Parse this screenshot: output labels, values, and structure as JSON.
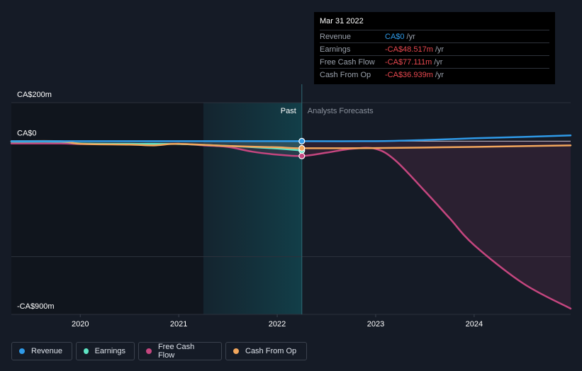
{
  "colors": {
    "background": "#151b26",
    "revenue": "#2f9ae8",
    "earnings": "#5ee5c4",
    "free_cash_flow": "#c5467f",
    "cash_from_op": "#f2a65c"
  },
  "chart_data": {
    "type": "line",
    "title": "",
    "y_unit": "CA$m",
    "ylim": [
      -900,
      200
    ],
    "y_tick_labels": [
      "CA$200m",
      "CA$0",
      "-CA$900m"
    ],
    "y_tick_values": [
      200,
      0,
      -900
    ],
    "xlim": [
      2019.3,
      2024.98
    ],
    "x_ticks": [
      2020,
      2021,
      2022,
      2023,
      2024
    ],
    "x_tick_labels": [
      "2020",
      "2021",
      "2022",
      "2023",
      "2024"
    ],
    "past_label": "Past",
    "forecast_label": "Analysts Forecasts",
    "past_end": 2022.25,
    "shade_start": 2021.25,
    "series": [
      {
        "name": "Revenue",
        "key": "revenue",
        "x": [
          2019.3,
          2020.0,
          2021.0,
          2022.0,
          2022.25,
          2023.0,
          2023.5,
          2024.0,
          2024.5,
          2024.98
        ],
        "values": [
          0,
          0,
          0,
          0,
          0,
          0,
          6,
          15,
          22,
          30
        ]
      },
      {
        "name": "Earnings",
        "key": "earnings",
        "x": [
          2019.3,
          2019.8,
          2020.0,
          2020.5,
          2021.0,
          2021.5,
          2022.0,
          2022.25
        ],
        "values": [
          -3,
          -3,
          -12,
          -14,
          -15,
          -25,
          -38,
          -48.517
        ]
      },
      {
        "name": "Free Cash Flow",
        "key": "free_cash_flow",
        "x": [
          2019.3,
          2019.8,
          2020.0,
          2020.5,
          2021.0,
          2021.25,
          2021.5,
          2021.75,
          2022.0,
          2022.25,
          2022.5,
          2022.75,
          2023.0,
          2023.2,
          2023.5,
          2023.75,
          2024.0,
          2024.5,
          2024.98
        ],
        "values": [
          -12,
          -12,
          -15,
          -16,
          -14,
          -22,
          -30,
          -55,
          -70,
          -77.111,
          -60,
          -40,
          -40,
          -100,
          -260,
          -400,
          -540,
          -740,
          -870
        ]
      },
      {
        "name": "Cash From Op",
        "key": "cash_from_op",
        "x": [
          2019.3,
          2019.8,
          2020.0,
          2020.5,
          2020.75,
          2021.0,
          2021.5,
          2022.0,
          2022.25,
          2023.0,
          2023.5,
          2024.0,
          2024.5,
          2024.98
        ],
        "values": [
          0,
          0,
          -14,
          -18,
          -22,
          -14,
          -25,
          -32,
          -36.939,
          -36,
          -33,
          -30,
          -26,
          -22
        ]
      }
    ],
    "tooltip": {
      "date": "Mar 31 2022",
      "rows": [
        {
          "name": "Revenue",
          "value": "CA$0",
          "unit": "/yr",
          "color": "#2f9ae8"
        },
        {
          "name": "Earnings",
          "value": "-CA$48.517m",
          "unit": "/yr",
          "color": "#e8484f"
        },
        {
          "name": "Free Cash Flow",
          "value": "-CA$77.111m",
          "unit": "/yr",
          "color": "#e8484f"
        },
        {
          "name": "Cash From Op",
          "value": "-CA$36.939m",
          "unit": "/yr",
          "color": "#e8484f"
        }
      ]
    }
  },
  "legend": [
    {
      "label": "Revenue",
      "key": "revenue"
    },
    {
      "label": "Earnings",
      "key": "earnings"
    },
    {
      "label": "Free Cash Flow",
      "key": "free_cash_flow"
    },
    {
      "label": "Cash From Op",
      "key": "cash_from_op"
    }
  ]
}
